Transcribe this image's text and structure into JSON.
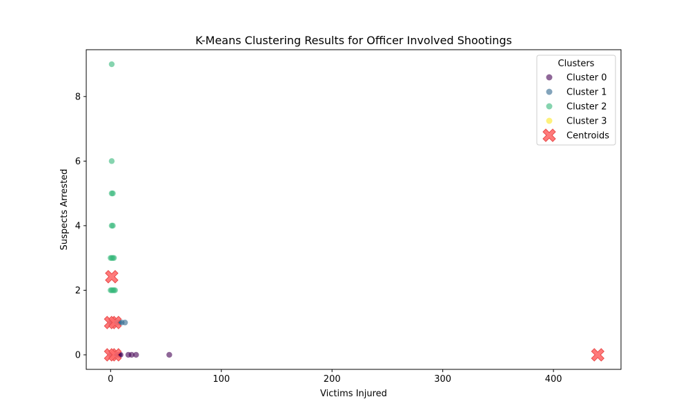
{
  "chart_data": {
    "type": "scatter",
    "title": "K-Means Clustering Results for Officer Involved Shootings",
    "xlabel": "Victims Injured",
    "ylabel": "Suspects Arrested",
    "xlim": [
      -22,
      461
    ],
    "ylim": [
      -0.45,
      9.45
    ],
    "xticks": [
      0,
      100,
      200,
      300,
      400
    ],
    "yticks": [
      0,
      2,
      4,
      6,
      8
    ],
    "grid": false,
    "legend": {
      "title": "Clusters",
      "placement": "top-right"
    },
    "series": [
      {
        "name": "Cluster 0",
        "color": "#440154",
        "points": [
          [
            0,
            0
          ],
          [
            1,
            0
          ],
          [
            2,
            0
          ],
          [
            3,
            0
          ],
          [
            4,
            0
          ],
          [
            5,
            0
          ],
          [
            6,
            0
          ],
          [
            7,
            0
          ],
          [
            8,
            0
          ],
          [
            9,
            0
          ],
          [
            16,
            0
          ],
          [
            19,
            0
          ],
          [
            23,
            0
          ],
          [
            53,
            0
          ],
          [
            0,
            1
          ],
          [
            1,
            1
          ],
          [
            2,
            1
          ],
          [
            3,
            1
          ]
        ]
      },
      {
        "name": "Cluster 1",
        "color": "#31688e",
        "points": [
          [
            4,
            1
          ],
          [
            5,
            1
          ],
          [
            6,
            1
          ],
          [
            7,
            1
          ],
          [
            8,
            1
          ],
          [
            10,
            1
          ],
          [
            13,
            1
          ]
        ]
      },
      {
        "name": "Cluster 2",
        "color": "#35b779",
        "points": [
          [
            0,
            2
          ],
          [
            1,
            2
          ],
          [
            2,
            2
          ],
          [
            3,
            2
          ],
          [
            4,
            2
          ],
          [
            0,
            3
          ],
          [
            1,
            3
          ],
          [
            2,
            3
          ],
          [
            3,
            3
          ],
          [
            1,
            4
          ],
          [
            2,
            4
          ],
          [
            1,
            5
          ],
          [
            2,
            5
          ],
          [
            1,
            6
          ],
          [
            1,
            9
          ]
        ]
      },
      {
        "name": "Cluster 3",
        "color": "#fde725",
        "points": []
      }
    ],
    "centroids": {
      "name": "Centroids",
      "color": "#ff6b6b",
      "points": [
        [
          1,
          2.42
        ],
        [
          0,
          1
        ],
        [
          4,
          1
        ],
        [
          0,
          0
        ],
        [
          4,
          0
        ],
        [
          440,
          0
        ]
      ]
    }
  }
}
